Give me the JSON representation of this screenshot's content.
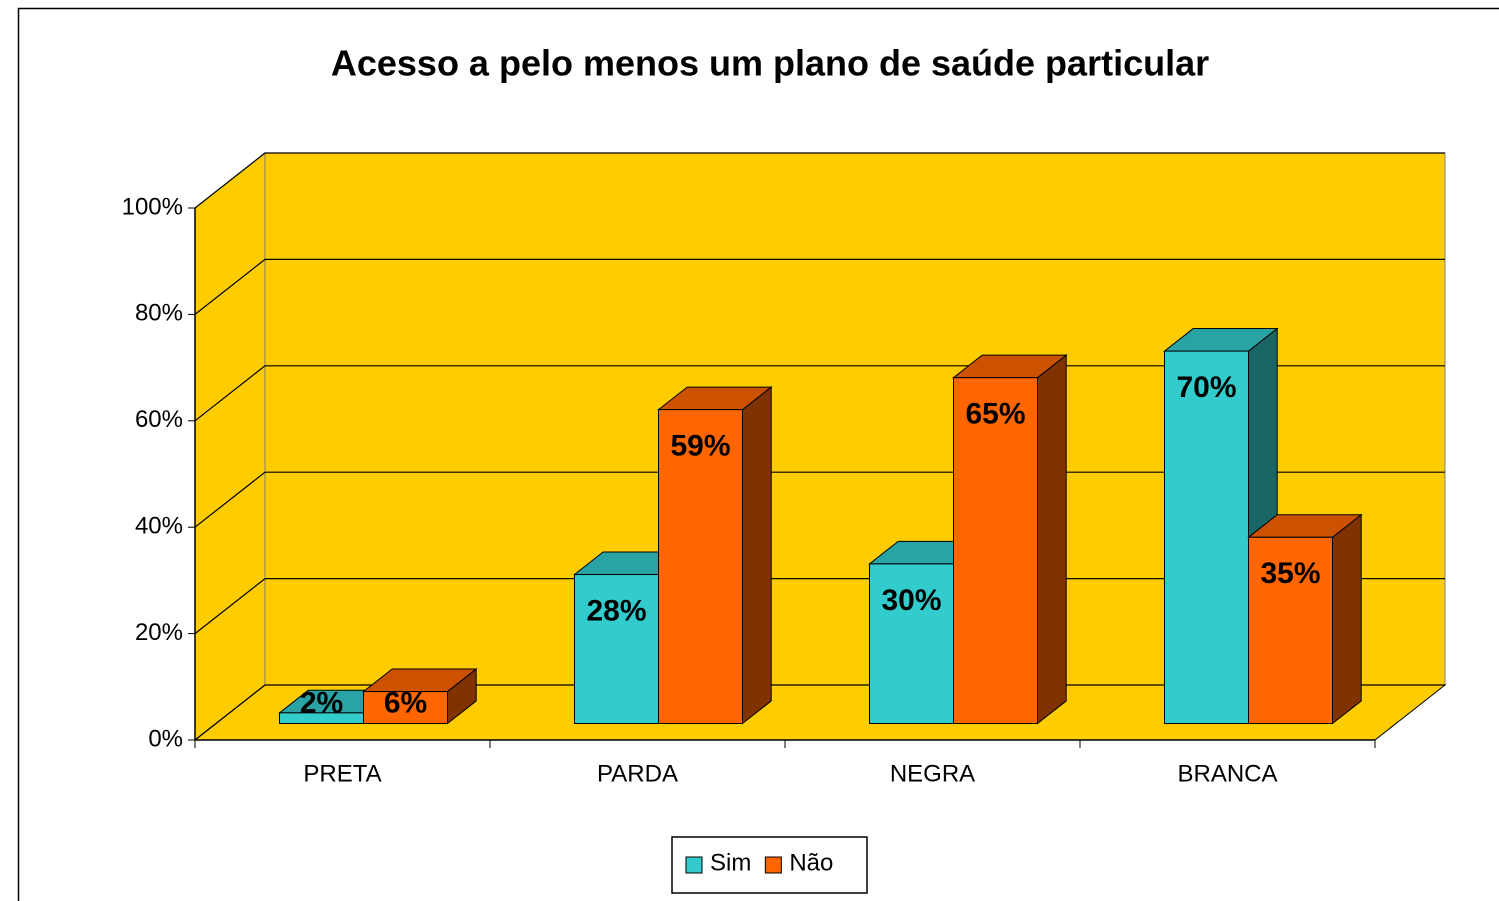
{
  "chart_data": {
    "type": "bar3d",
    "title": "Acesso a pelo menos um plano de saúde particular",
    "categories": [
      "PRETA",
      "PARDA",
      "NEGRA",
      "BRANCA"
    ],
    "series": [
      {
        "name": "Sim",
        "color": "#33cccc",
        "values": [
          2,
          28,
          30,
          70
        ],
        "value_labels": [
          "2%",
          "28%",
          "30%",
          "70%"
        ]
      },
      {
        "name": "Não",
        "color": "#ff6600",
        "values": [
          6,
          59,
          65,
          35
        ],
        "value_labels": [
          "6%",
          "59%",
          "65%",
          "35%"
        ]
      }
    ],
    "ylim": [
      0,
      100
    ],
    "yticks": [
      {
        "value": 0,
        "label": "0%"
      },
      {
        "value": 20,
        "label": "20%"
      },
      {
        "value": 40,
        "label": "40%"
      },
      {
        "value": 60,
        "label": "60%"
      },
      {
        "value": 80,
        "label": "80%"
      },
      {
        "value": 100,
        "label": "100%"
      }
    ],
    "grid": true,
    "wall_color": "#ffcc00",
    "legend": "bottom"
  }
}
